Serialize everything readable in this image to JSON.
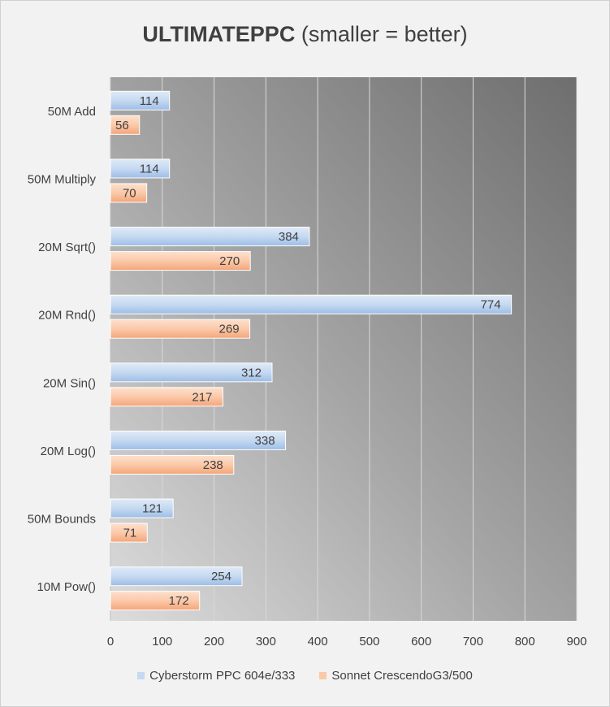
{
  "chart_data": {
    "type": "bar",
    "orientation": "horizontal",
    "title": "ULTIMATEPPC",
    "subtitle": "(smaller = better)",
    "categories": [
      "50M Add",
      "50M Multiply",
      "20M Sqrt()",
      "20M Rnd()",
      "20M Sin()",
      "20M Log()",
      "50M Bounds",
      "10M Pow()"
    ],
    "series": [
      {
        "name": "Cyberstorm PPC 604e/333",
        "color": "#c5d9f1",
        "values": [
          114,
          114,
          384,
          774,
          312,
          338,
          121,
          254
        ]
      },
      {
        "name": "Sonnet CrescendoG3/500",
        "color": "#fbc9a9",
        "values": [
          56,
          70,
          270,
          269,
          217,
          238,
          71,
          172
        ]
      }
    ],
    "xlim": [
      0,
      900
    ],
    "xticks": [
      0,
      100,
      200,
      300,
      400,
      500,
      600,
      700,
      800,
      900
    ],
    "xlabel": "",
    "ylabel": "",
    "grid": true,
    "legend_position": "bottom"
  }
}
